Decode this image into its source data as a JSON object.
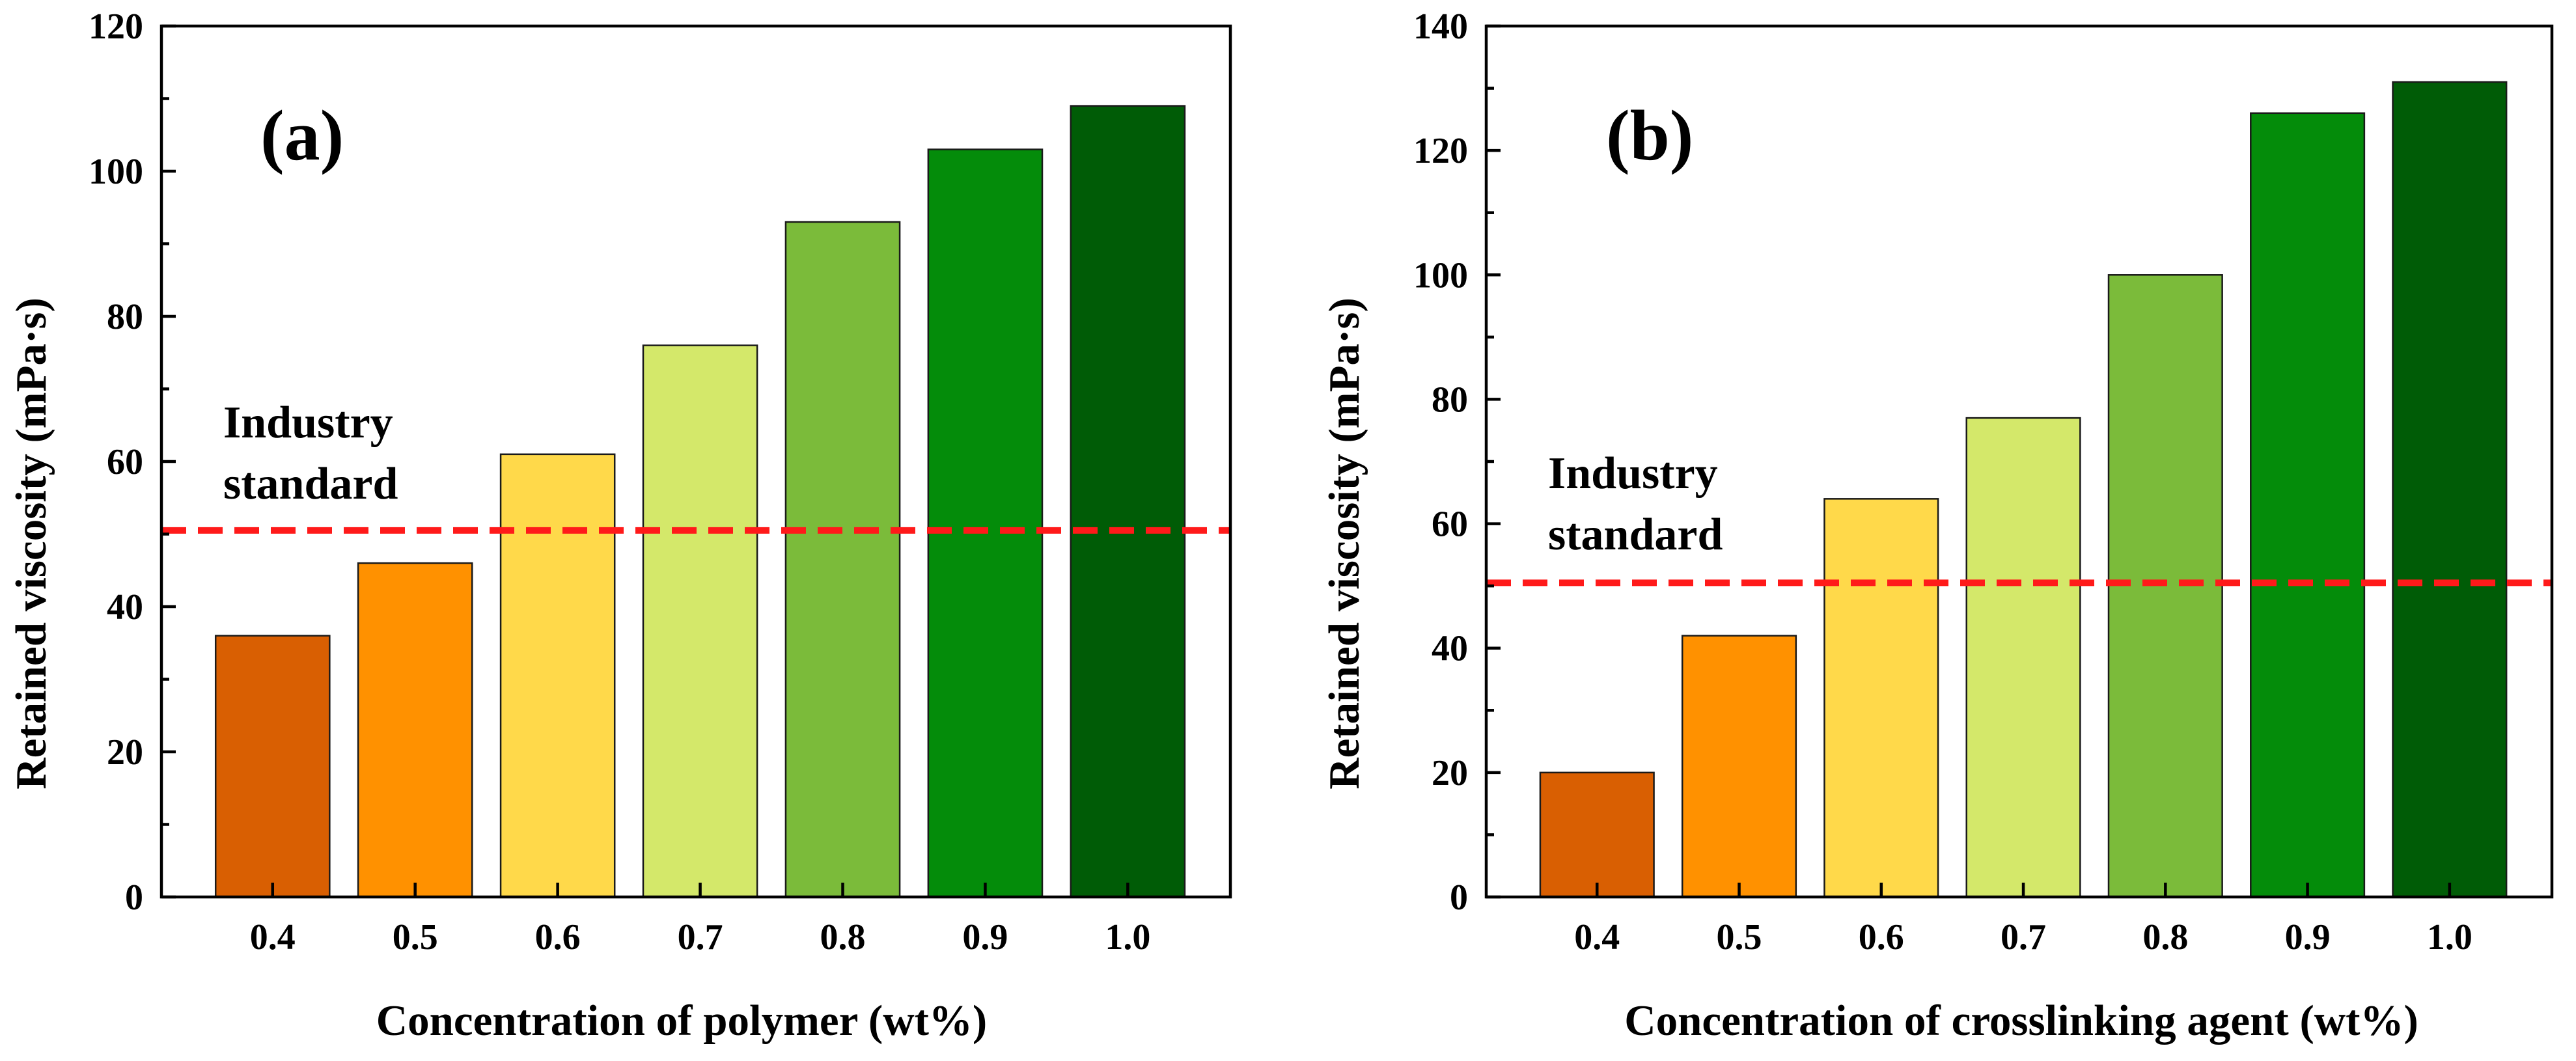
{
  "chart_data": [
    {
      "type": "bar",
      "panel_label": "(a)",
      "title": "",
      "xlabel": "Concentration of polymer (wt%)",
      "ylabel": "Retained viscosity (mPa·s)",
      "categories": [
        "0.4",
        "0.5",
        "0.6",
        "0.7",
        "0.8",
        "0.9",
        "1.0"
      ],
      "values": [
        36,
        46,
        61,
        76,
        93,
        103,
        109
      ],
      "colors": [
        "#d95f02",
        "#ff9100",
        "#ffd94a",
        "#d4e86a",
        "#7bbb3a",
        "#048c0a",
        "#005c06"
      ],
      "ylim": [
        0,
        120
      ],
      "yticks": [
        "0",
        "20",
        "40",
        "60",
        "80",
        "100",
        "120"
      ],
      "reference_line": {
        "value": 50.5,
        "color": "#ff1a1a",
        "label_lines": [
          "Industry",
          "standard"
        ]
      }
    },
    {
      "type": "bar",
      "panel_label": "(b)",
      "title": "",
      "xlabel": "Concentration of crosslinking agent (wt%)",
      "ylabel": "Retained viscosity (mPa·s)",
      "categories": [
        "0.4",
        "0.5",
        "0.6",
        "0.7",
        "0.8",
        "0.9",
        "1.0"
      ],
      "values": [
        20,
        42,
        64,
        77,
        100,
        126,
        131
      ],
      "colors": [
        "#d95f02",
        "#ff9100",
        "#ffd94a",
        "#d4e86a",
        "#7bbb3a",
        "#048c0a",
        "#005c06"
      ],
      "ylim": [
        0,
        140
      ],
      "yticks": [
        "0",
        "20",
        "40",
        "60",
        "80",
        "100",
        "120",
        "140"
      ],
      "reference_line": {
        "value": 50.5,
        "color": "#ff1a1a",
        "label_lines": [
          "Industry",
          "standard"
        ]
      }
    }
  ]
}
